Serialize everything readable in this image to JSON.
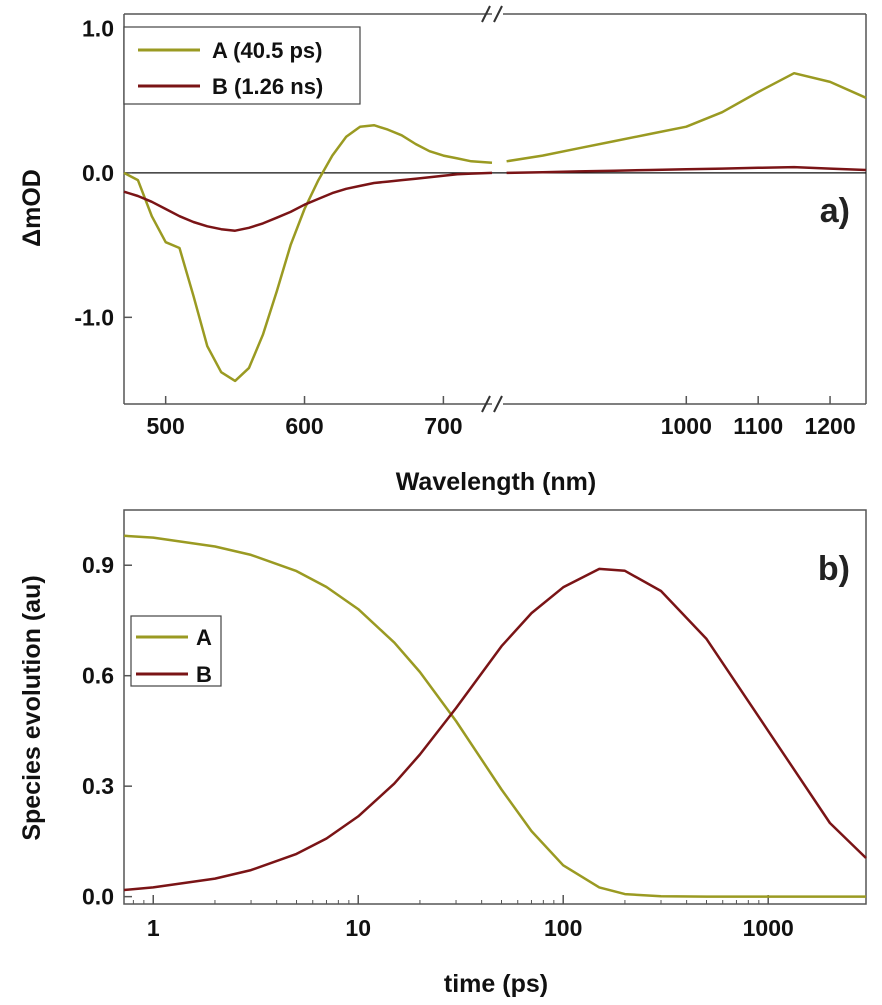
{
  "colors": {
    "A": "#9a9a22",
    "B": "#7a1416",
    "axis": "#555555",
    "zero_line": "#111111"
  },
  "chart_data": [
    {
      "panel": "a)",
      "type": "line",
      "xlabel": "Wavelength (nm)",
      "ylabel": "ΔmOD",
      "broken_x_axis": true,
      "segments": [
        {
          "xlim": [
            470,
            735
          ],
          "ticks": [
            500,
            600,
            700
          ]
        },
        {
          "xlim": [
            745,
            1250
          ],
          "ticks": [
            1000,
            1100,
            1200
          ]
        }
      ],
      "ylim": [
        -1.6,
        1.1
      ],
      "yticks": [
        1.0,
        0.0,
        -1.0
      ],
      "ytick_labels": [
        "1.0",
        "0.0",
        "-1.0"
      ],
      "zero_line": true,
      "legend_position": "top-left",
      "series": [
        {
          "name": "A (40.5 ps)",
          "key": "A",
          "x": [
            470,
            480,
            490,
            500,
            510,
            520,
            530,
            540,
            550,
            560,
            570,
            580,
            590,
            600,
            610,
            620,
            630,
            640,
            650,
            660,
            670,
            680,
            690,
            700,
            710,
            720,
            735,
            750,
            800,
            850,
            900,
            950,
            1000,
            1050,
            1100,
            1150,
            1200,
            1250
          ],
          "y": [
            0.0,
            -0.05,
            -0.3,
            -0.48,
            -0.52,
            -0.85,
            -1.2,
            -1.38,
            -1.44,
            -1.35,
            -1.12,
            -0.82,
            -0.5,
            -0.25,
            -0.05,
            0.12,
            0.25,
            0.32,
            0.33,
            0.3,
            0.26,
            0.2,
            0.15,
            0.12,
            0.1,
            0.08,
            0.07,
            0.08,
            0.12,
            0.17,
            0.22,
            0.27,
            0.32,
            0.42,
            0.56,
            0.69,
            0.63,
            0.52
          ]
        },
        {
          "name": "B (1.26 ns)",
          "key": "B",
          "x": [
            470,
            480,
            490,
            500,
            510,
            520,
            530,
            540,
            550,
            560,
            570,
            580,
            590,
            600,
            610,
            620,
            630,
            640,
            650,
            660,
            670,
            680,
            690,
            700,
            710,
            720,
            735,
            750,
            800,
            850,
            900,
            950,
            1000,
            1050,
            1100,
            1150,
            1200,
            1250
          ],
          "y": [
            -0.13,
            -0.16,
            -0.2,
            -0.25,
            -0.3,
            -0.34,
            -0.37,
            -0.39,
            -0.4,
            -0.38,
            -0.35,
            -0.31,
            -0.27,
            -0.22,
            -0.18,
            -0.14,
            -0.11,
            -0.09,
            -0.07,
            -0.06,
            -0.05,
            -0.04,
            -0.03,
            -0.02,
            -0.01,
            -0.005,
            0.0,
            0.0,
            0.005,
            0.01,
            0.015,
            0.02,
            0.025,
            0.03,
            0.035,
            0.04,
            0.03,
            0.02
          ]
        }
      ]
    },
    {
      "panel": "b)",
      "type": "line",
      "xscale": "log",
      "xlabel": "time (ps)",
      "ylabel": "Species evolution (au)",
      "xlim": [
        0.72,
        3000
      ],
      "xticks": [
        1,
        10,
        100,
        1000
      ],
      "xtick_labels": [
        "1",
        "10",
        "100",
        "1000"
      ],
      "ylim": [
        -0.02,
        1.05
      ],
      "yticks": [
        0.0,
        0.3,
        0.6,
        0.9
      ],
      "ytick_labels": [
        "0.0",
        "0.3",
        "0.6",
        "0.9"
      ],
      "legend_position": "middle-left",
      "series": [
        {
          "name": "A",
          "key": "A",
          "x": [
            0.72,
            1,
            2,
            3,
            5,
            7,
            10,
            15,
            20,
            30,
            50,
            70,
            100,
            150,
            200,
            300,
            500,
            1000,
            2000,
            3000
          ],
          "y": [
            0.98,
            0.975,
            0.951,
            0.928,
            0.884,
            0.841,
            0.781,
            0.69,
            0.61,
            0.477,
            0.291,
            0.178,
            0.085,
            0.025,
            0.007,
            0.001,
            0.0,
            0.0,
            0.0,
            0.0
          ]
        },
        {
          "name": "B",
          "key": "B",
          "x": [
            0.72,
            1,
            2,
            3,
            5,
            7,
            10,
            15,
            20,
            30,
            50,
            70,
            100,
            150,
            200,
            300,
            500,
            1000,
            2000,
            3000
          ],
          "y": [
            0.018,
            0.025,
            0.049,
            0.072,
            0.116,
            0.158,
            0.218,
            0.307,
            0.386,
            0.512,
            0.68,
            0.77,
            0.84,
            0.89,
            0.885,
            0.83,
            0.7,
            0.45,
            0.2,
            0.105
          ]
        }
      ]
    }
  ]
}
